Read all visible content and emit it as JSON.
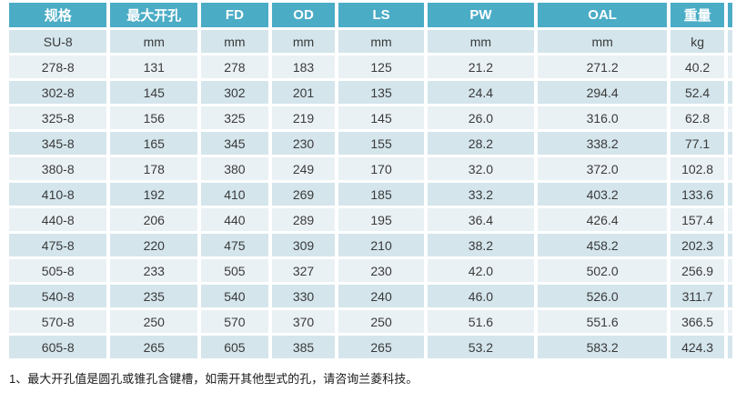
{
  "colors": {
    "header_bg": "#4BACC6",
    "header_text": "#FFFFFF",
    "row_dark_bg": "#D4E5EC",
    "row_light_bg": "#EAF1F5",
    "cell_text": "#3A3A3A",
    "footnote_text": "#1A1A1A"
  },
  "table": {
    "headers": [
      "规格",
      "最大开孔",
      "FD",
      "OD",
      "LS",
      "PW",
      "OAL",
      "重量"
    ],
    "units_row": [
      "SU-8",
      "mm",
      "mm",
      "mm",
      "mm",
      "mm",
      "mm",
      "kg"
    ],
    "rows": [
      [
        "278-8",
        "131",
        "278",
        "183",
        "125",
        "21.2",
        "271.2",
        "40.2"
      ],
      [
        "302-8",
        "145",
        "302",
        "201",
        "135",
        "24.4",
        "294.4",
        "52.4"
      ],
      [
        "325-8",
        "156",
        "325",
        "219",
        "145",
        "26.0",
        "316.0",
        "62.8"
      ],
      [
        "345-8",
        "165",
        "345",
        "230",
        "155",
        "28.2",
        "338.2",
        "77.1"
      ],
      [
        "380-8",
        "178",
        "380",
        "249",
        "170",
        "32.0",
        "372.0",
        "102.8"
      ],
      [
        "410-8",
        "192",
        "410",
        "269",
        "185",
        "33.2",
        "403.2",
        "133.6"
      ],
      [
        "440-8",
        "206",
        "440",
        "289",
        "195",
        "36.4",
        "426.4",
        "157.4"
      ],
      [
        "475-8",
        "220",
        "475",
        "309",
        "210",
        "38.2",
        "458.2",
        "202.3"
      ],
      [
        "505-8",
        "233",
        "505",
        "327",
        "230",
        "42.0",
        "502.0",
        "256.9"
      ],
      [
        "540-8",
        "235",
        "540",
        "330",
        "240",
        "46.0",
        "526.0",
        "311.7"
      ],
      [
        "570-8",
        "250",
        "570",
        "370",
        "250",
        "51.6",
        "551.6",
        "366.5"
      ],
      [
        "605-8",
        "265",
        "605",
        "385",
        "265",
        "53.2",
        "583.2",
        "424.3"
      ]
    ]
  },
  "footnote": "1、最大开孔值是圆孔或锥孔含键槽，如需开其他型式的孔，请咨询兰菱科技。"
}
